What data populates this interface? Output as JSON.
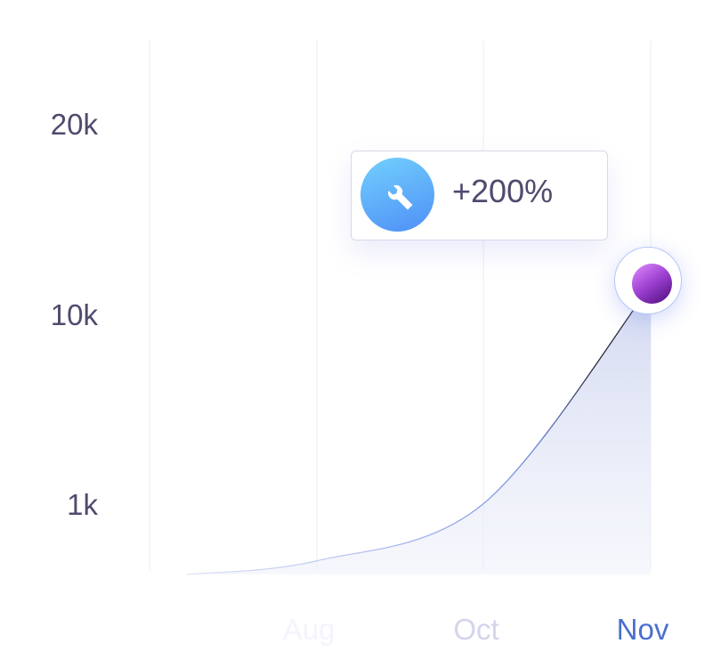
{
  "chart_data": {
    "type": "area",
    "title": "",
    "xlabel": "",
    "ylabel": "",
    "categories": [
      "",
      "Aug",
      "Oct",
      "Nov"
    ],
    "x_tick_colors": [
      "#ffffff",
      "#f3f4fc",
      "#d3d5ec",
      "#4a6fd0"
    ],
    "y_ticks": [
      {
        "label": "1k",
        "value": 1000
      },
      {
        "label": "10k",
        "value": 10000
      },
      {
        "label": "20k",
        "value": 20000
      }
    ],
    "series": [
      {
        "values": [
          0,
          200,
          1100,
          11600
        ]
      }
    ],
    "grid": "vertical",
    "annotation": {
      "icon": "wrench-icon",
      "text": "+200%"
    },
    "colors": {
      "line": "#2b2b3a",
      "line_low": "#6d87e0",
      "area": "#dfe3f5",
      "marker": "#9b3fd0",
      "icon_bg": "#5aa7fb"
    }
  }
}
